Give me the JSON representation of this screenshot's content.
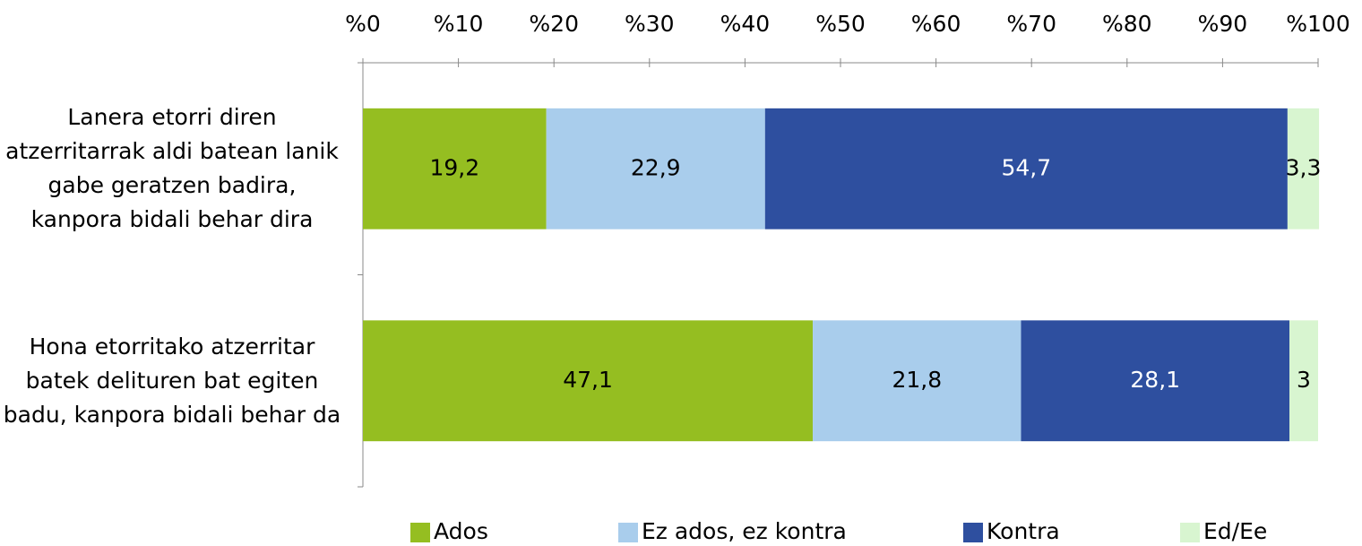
{
  "chart_data": {
    "type": "stacked_barh",
    "categories": [
      "Lanera etorri diren atzerritarrak aldi batean lanik gabe geratzen badira, kanpora bidali behar dira",
      "Hona etorritako atzerritar batek delituren bat egiten badu, kanpora bidali behar da"
    ],
    "series": [
      {
        "name": "Ados",
        "color": "#95be21",
        "values": [
          19.2,
          47.1
        ],
        "value_labels": [
          "19,2",
          "47,1"
        ]
      },
      {
        "name": "Ez ados, ez kontra",
        "color": "#a9cdec",
        "values": [
          22.9,
          21.8
        ],
        "value_labels": [
          "22,9",
          "21,8"
        ]
      },
      {
        "name": "Kontra",
        "color": "#2e4f9f",
        "values": [
          54.7,
          28.1
        ],
        "value_labels": [
          "54,7",
          "28,1"
        ]
      },
      {
        "name": "Ed/Ee",
        "color": "#d8f5d0",
        "values": [
          3.3,
          3
        ],
        "value_labels": [
          "3,3",
          "3"
        ]
      }
    ],
    "xlim": [
      0,
      100
    ],
    "xticks": [
      {
        "value": 0,
        "label": "%0"
      },
      {
        "value": 10,
        "label": "%10"
      },
      {
        "value": 20,
        "label": "%20"
      },
      {
        "value": 30,
        "label": "%30"
      },
      {
        "value": 40,
        "label": "%40"
      },
      {
        "value": 50,
        "label": "%50"
      },
      {
        "value": 60,
        "label": "%60"
      },
      {
        "value": 70,
        "label": "%70"
      },
      {
        "value": 80,
        "label": "%80"
      },
      {
        "value": 90,
        "label": "%90"
      },
      {
        "value": 100,
        "label": "%100"
      }
    ],
    "legend": "bottom"
  }
}
